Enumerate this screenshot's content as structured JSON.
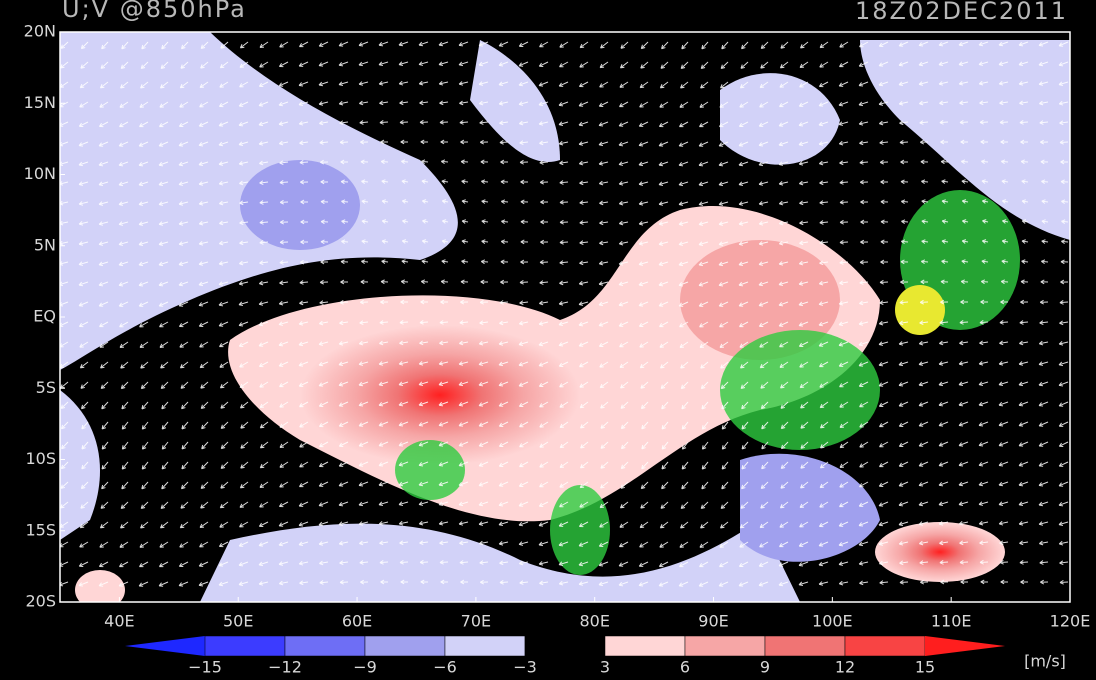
{
  "header": {
    "title": "U;V @850hPa",
    "time": "18Z02DEC2011"
  },
  "map": {
    "lat_labels": [
      "20N",
      "15N",
      "10N",
      "5N",
      "EQ",
      "5S",
      "10S",
      "15S",
      "20S"
    ],
    "lon_labels": [
      "40E",
      "50E",
      "60E",
      "70E",
      "80E",
      "90E",
      "100E",
      "110E",
      "120E"
    ]
  },
  "colorbar": {
    "levels": [
      "−15",
      "−12",
      "−9",
      "−6",
      "−3",
      "3",
      "6",
      "9",
      "12",
      "15"
    ],
    "colors": [
      "#1e28ff",
      "#3c3cff",
      "#6e6ef5",
      "#a0a0ee",
      "#d2d2f8",
      "#000000",
      "#ffd6d6",
      "#f6a6a6",
      "#f07474",
      "#f84444",
      "#ff1e1e"
    ],
    "units": "[m/s]"
  }
}
